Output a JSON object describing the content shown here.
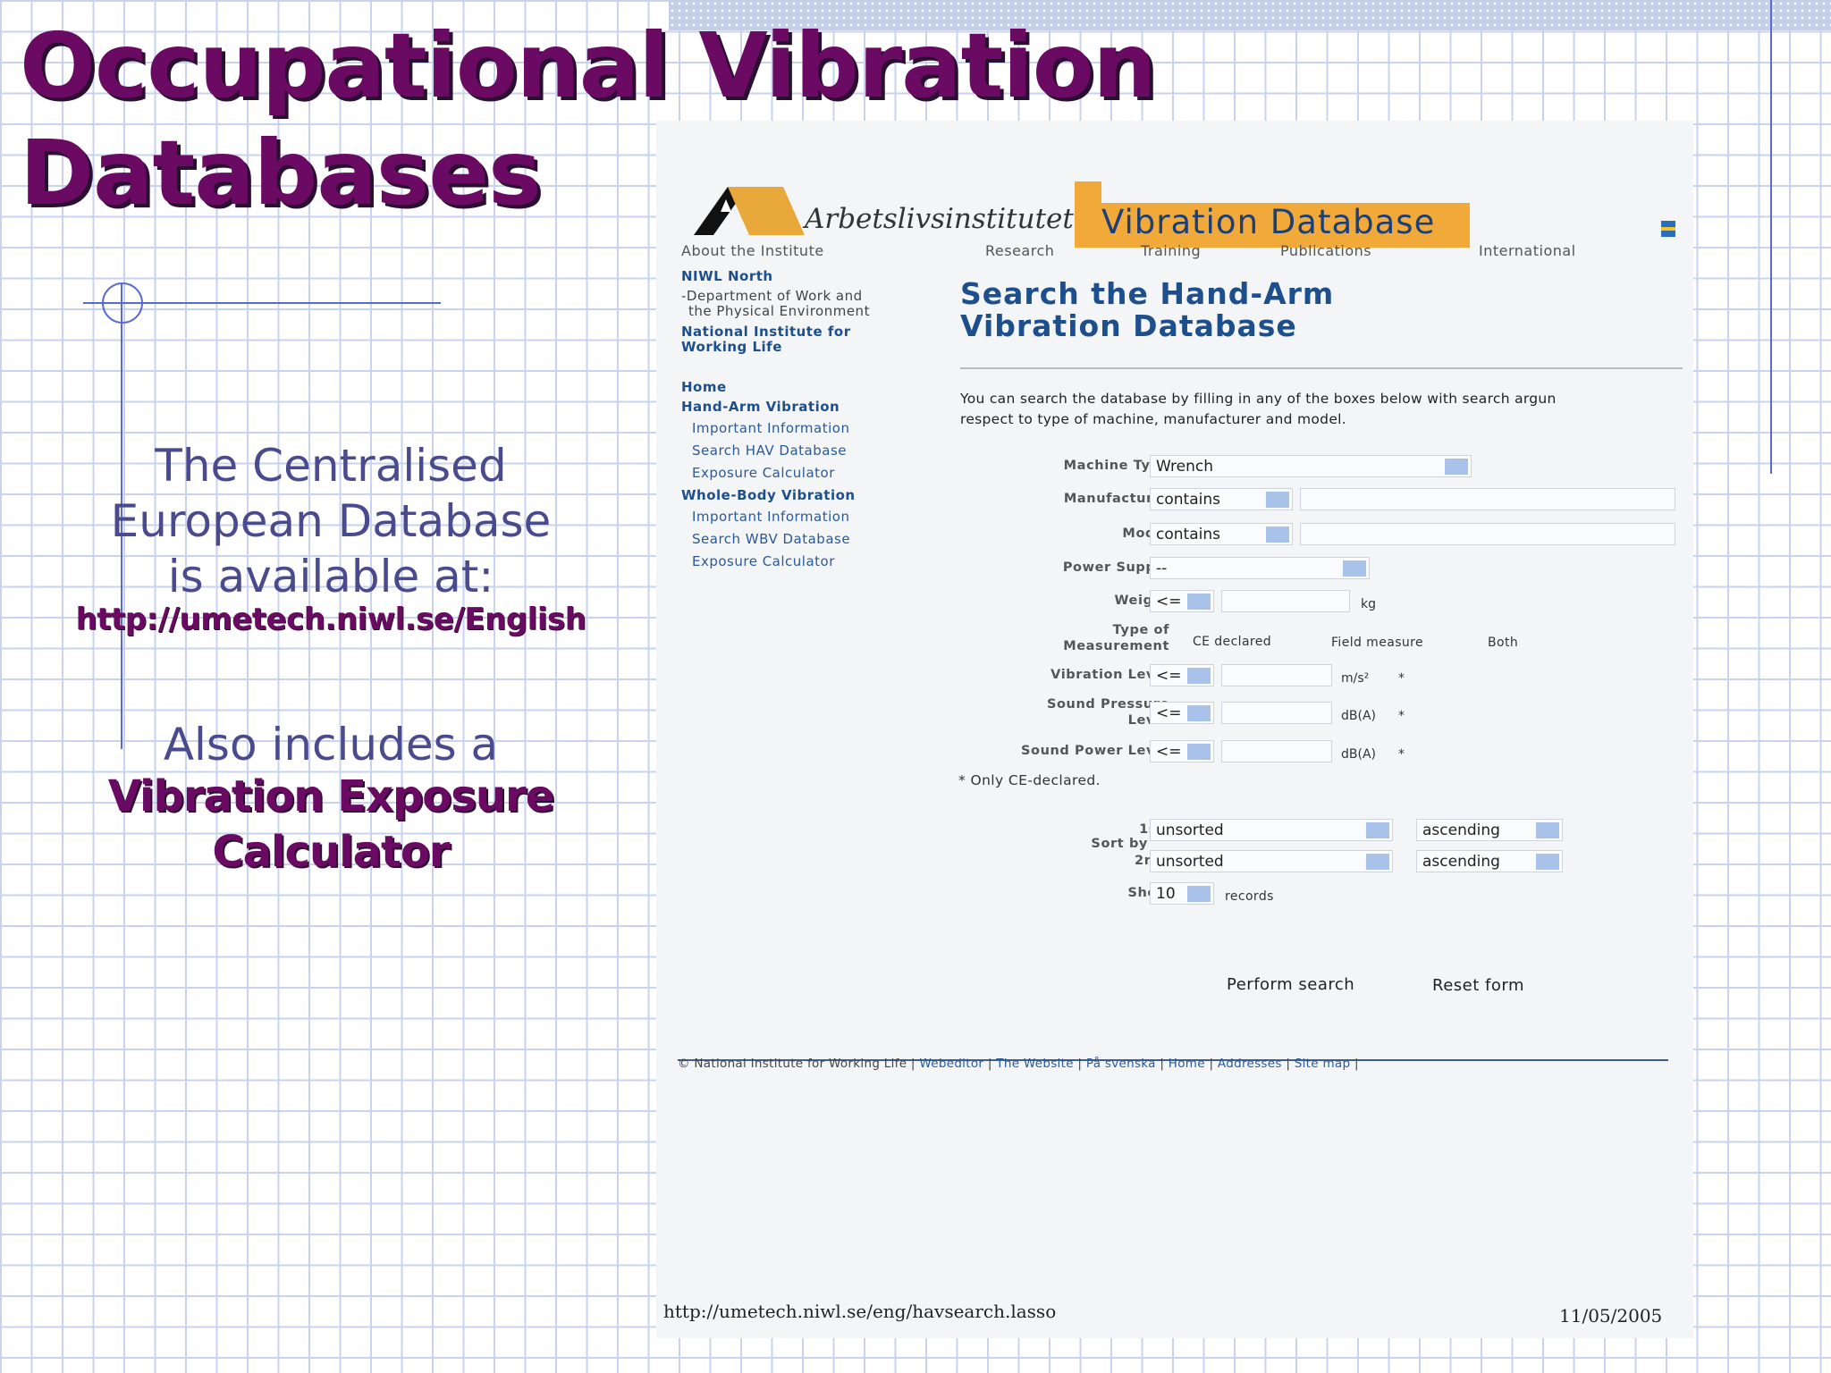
{
  "slide": {
    "title_line1": "Occupational Vibration",
    "title_line2": "Databases",
    "intro_line1": "The Centralised",
    "intro_line2": "European Database",
    "intro_line3": "is available at:",
    "url": "http://umetech.niwl.se/English",
    "also_line": "Also includes a",
    "calc_line1": "Vibration Exposure",
    "calc_line2": "Calculator"
  },
  "site": {
    "brand": "Arbetslivsinstitutet",
    "banner": "Vibration Database",
    "nav": [
      "About the Institute",
      "Research",
      "Training",
      "Publications",
      "International"
    ],
    "sidebar": {
      "org1": "NIWL North",
      "org2_line1": "-Department of Work and",
      "org2_line2": "the Physical Environment",
      "org3_line1": "National Institute for",
      "org3_line2": "Working Life",
      "home": "Home",
      "hav": "Hand-Arm Vibration",
      "hav_items": [
        "Important Information",
        "Search HAV Database",
        "Exposure Calculator"
      ],
      "wbv": "Whole-Body Vibration",
      "wbv_items": [
        "Important Information",
        "Search WBV Database",
        "Exposure Calculator"
      ]
    },
    "heading_line1": "Search the Hand-Arm",
    "heading_line2": "Vibration Database",
    "desc_line1": "You can search the database by filling in any of the boxes below with search argun",
    "desc_line2": "respect to type of machine, manufacturer and model.",
    "form": {
      "machine_type_label": "Machine Type",
      "machine_type_value": "Wrench",
      "manufacturer_label": "Manufacturer",
      "manufacturer_op": "contains",
      "model_label": "Model",
      "model_op": "contains",
      "power_label": "Power Supply",
      "power_value": "--",
      "weight_label": "Weight",
      "weight_op": "<=",
      "weight_unit": "kg",
      "measure_label_line1": "Type of",
      "measure_label_line2": "Measurement",
      "measure_options": [
        "CE declared",
        "Field measure",
        "Both"
      ],
      "vib_label": "Vibration Level",
      "vib_op": "<=",
      "vib_unit": "m/s²",
      "spl_label_line1": "Sound Pressure",
      "spl_label_line2": "Level",
      "spl_op": "<=",
      "spl_unit": "dB(A)",
      "swl_label": "Sound Power Level",
      "swl_op": "<=",
      "swl_unit": "dB(A)",
      "asterisk": "*",
      "note": "* Only CE-declared.",
      "sort_label": "Sort by",
      "sort1_label": "1st:",
      "sort1_value": "unsorted",
      "sort1_dir": "ascending",
      "sort2_label": "2nd:",
      "sort2_value": "unsorted",
      "sort2_dir": "ascending",
      "show_label": "Show",
      "show_value": "10",
      "show_unit": "records",
      "search_button": "Perform search",
      "reset_button": "Reset form"
    },
    "footer": {
      "copyright": "© National Institute for Working Life |",
      "links": [
        "Webeditor",
        "The Website",
        "På svenska",
        "Home",
        "Addresses",
        "Site map"
      ],
      "sep": "|"
    },
    "print_url": "http://umetech.niwl.se/eng/havsearch.lasso",
    "print_date": "11/05/2005"
  },
  "colors": {
    "title": "#6b0a63",
    "text": "#4a4a8e",
    "accent": "#f1aa3a",
    "link": "#1c4f8c"
  }
}
